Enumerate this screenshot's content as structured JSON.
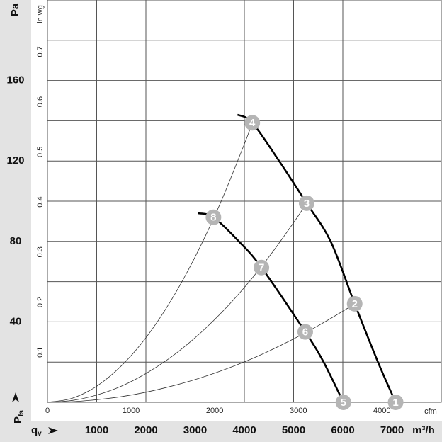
{
  "chart_data": {
    "type": "line",
    "y_axis_label": "Pa",
    "y2_axis_label": "in wg",
    "x_axis_label": "m³/h",
    "x2_axis_label": "cfm",
    "q_label": "q",
    "q_sub": "v",
    "p_label": "P",
    "p_sub": "fs",
    "xlim": [
      0,
      8000
    ],
    "xticks": [
      1000,
      2000,
      3000,
      4000,
      5000,
      6000,
      7000
    ],
    "x2lim": [
      0,
      4709
    ],
    "x2ticks": [
      0,
      1000,
      2000,
      3000,
      4000
    ],
    "ylim": [
      0,
      200
    ],
    "yticks": [
      40,
      80,
      120,
      160
    ],
    "ygrid": [
      20,
      40,
      60,
      80,
      100,
      120,
      140,
      160,
      180
    ],
    "y2lim": [
      0,
      0.803
    ],
    "y2ticks": [
      0.1,
      0.2,
      0.3,
      0.4,
      0.5,
      0.6,
      0.7
    ],
    "grid": true,
    "series": [
      {
        "style": "bold",
        "color": "#000000",
        "x": [
          3859,
          4161,
          4706,
          5265,
          5753,
          6241,
          6714,
          7073
        ],
        "values": [
          143,
          139,
          120,
          99,
          80,
          49,
          20,
          0
        ]
      },
      {
        "style": "bold",
        "color": "#000000",
        "x": [
          3056,
          3372,
          3888,
          4347,
          5237,
          5610,
          6011
        ],
        "values": [
          94,
          92,
          80,
          67,
          35,
          20,
          0
        ]
      },
      {
        "style": "thin",
        "color": "#333333",
        "x": [
          0,
          500,
          1000,
          1500,
          2000,
          2500,
          3000,
          3500,
          4000,
          4161
        ],
        "values": [
          0,
          2.0,
          8.0,
          18.1,
          32.1,
          50.2,
          72.3,
          98.3,
          128.4,
          139
        ]
      },
      {
        "style": "thin",
        "color": "#333333",
        "x": [
          0,
          500,
          1000,
          1500,
          2000,
          2500,
          3000,
          3500,
          4000,
          4500,
          5000,
          5265
        ],
        "values": [
          0,
          0.9,
          3.6,
          8.0,
          14.3,
          22.3,
          32.1,
          43.7,
          57.1,
          72.3,
          89.3,
          99
        ]
      },
      {
        "style": "thin",
        "color": "#333333",
        "x": [
          0,
          500,
          1000,
          1500,
          2000,
          2500,
          3000,
          3500,
          4000,
          4500,
          5000,
          5500,
          6000,
          6241
        ],
        "values": [
          0,
          0.3,
          1.3,
          2.8,
          5.0,
          7.9,
          11.3,
          15.4,
          20.1,
          25.5,
          31.5,
          38.1,
          45.3,
          49
        ]
      }
    ],
    "points": [
      {
        "label": "1",
        "x": 7073,
        "y": 0
      },
      {
        "label": "2",
        "x": 6241,
        "y": 49
      },
      {
        "label": "3",
        "x": 5265,
        "y": 99
      },
      {
        "label": "4",
        "x": 4161,
        "y": 139
      },
      {
        "label": "5",
        "x": 6011,
        "y": 0
      },
      {
        "label": "6",
        "x": 5237,
        "y": 35
      },
      {
        "label": "7",
        "x": 4347,
        "y": 67
      },
      {
        "label": "8",
        "x": 3372,
        "y": 92
      }
    ],
    "marker_color": "#b5b5b5"
  }
}
